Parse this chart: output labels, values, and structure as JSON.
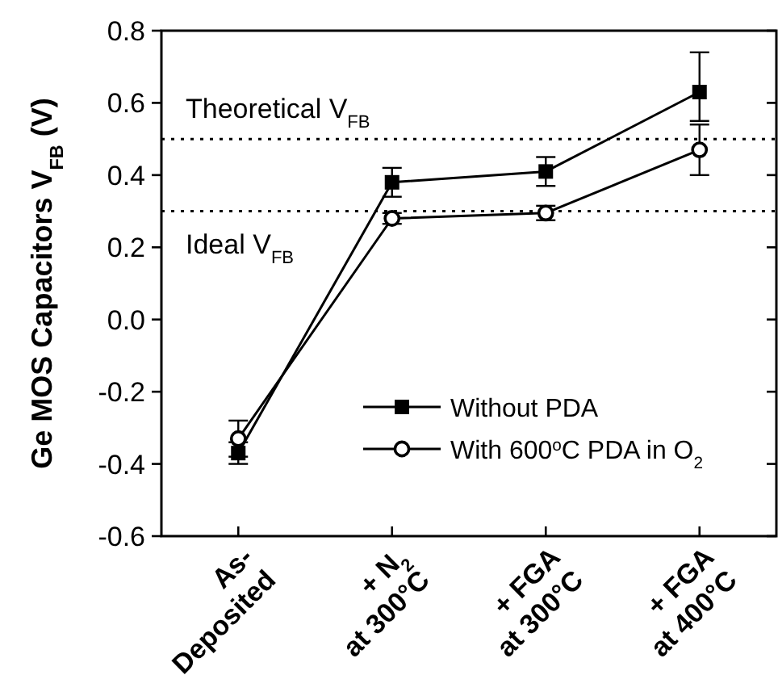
{
  "chart_data": {
    "type": "line",
    "ylabel": "Ge MOS Capacitors V$_{FB}$ (V)",
    "categories": [
      "As-\nDeposited",
      "+ N$_{2}$\nat 300°C",
      "+ FGA\nat 300°C",
      "+ FGA\nat 400°C"
    ],
    "series": [
      {
        "name": "Without PDA",
        "color": "#000000",
        "marker": "square",
        "values": [
          -0.37,
          0.38,
          0.41,
          0.63
        ],
        "errors": [
          0.03,
          0.04,
          0.04,
          [
            0.55,
            0.74
          ]
        ]
      },
      {
        "name": "With 600$^{o}$C PDA in O$_{2}$",
        "color": "#000000",
        "marker": "circle",
        "values": [
          -0.33,
          0.28,
          0.295,
          0.47
        ],
        "errors": [
          0.05,
          0.015,
          0.02,
          0.07
        ]
      }
    ],
    "ylim": [
      -0.6,
      0.8
    ],
    "yticks": [
      -0.6,
      -0.4,
      -0.2,
      {
        "value": 0,
        "label": "0.0"
      },
      0.2,
      0.4,
      0.6,
      0.8
    ],
    "ref_lines": [
      {
        "axis": "y",
        "value": 0.5,
        "label": "Theoretical V$_{FB}$",
        "line_style": "dotted"
      },
      {
        "axis": "y",
        "value": 0.3,
        "label": "Ideal V$_{FB}$",
        "line_style": "dotted"
      }
    ],
    "legend": "bottom right"
  }
}
